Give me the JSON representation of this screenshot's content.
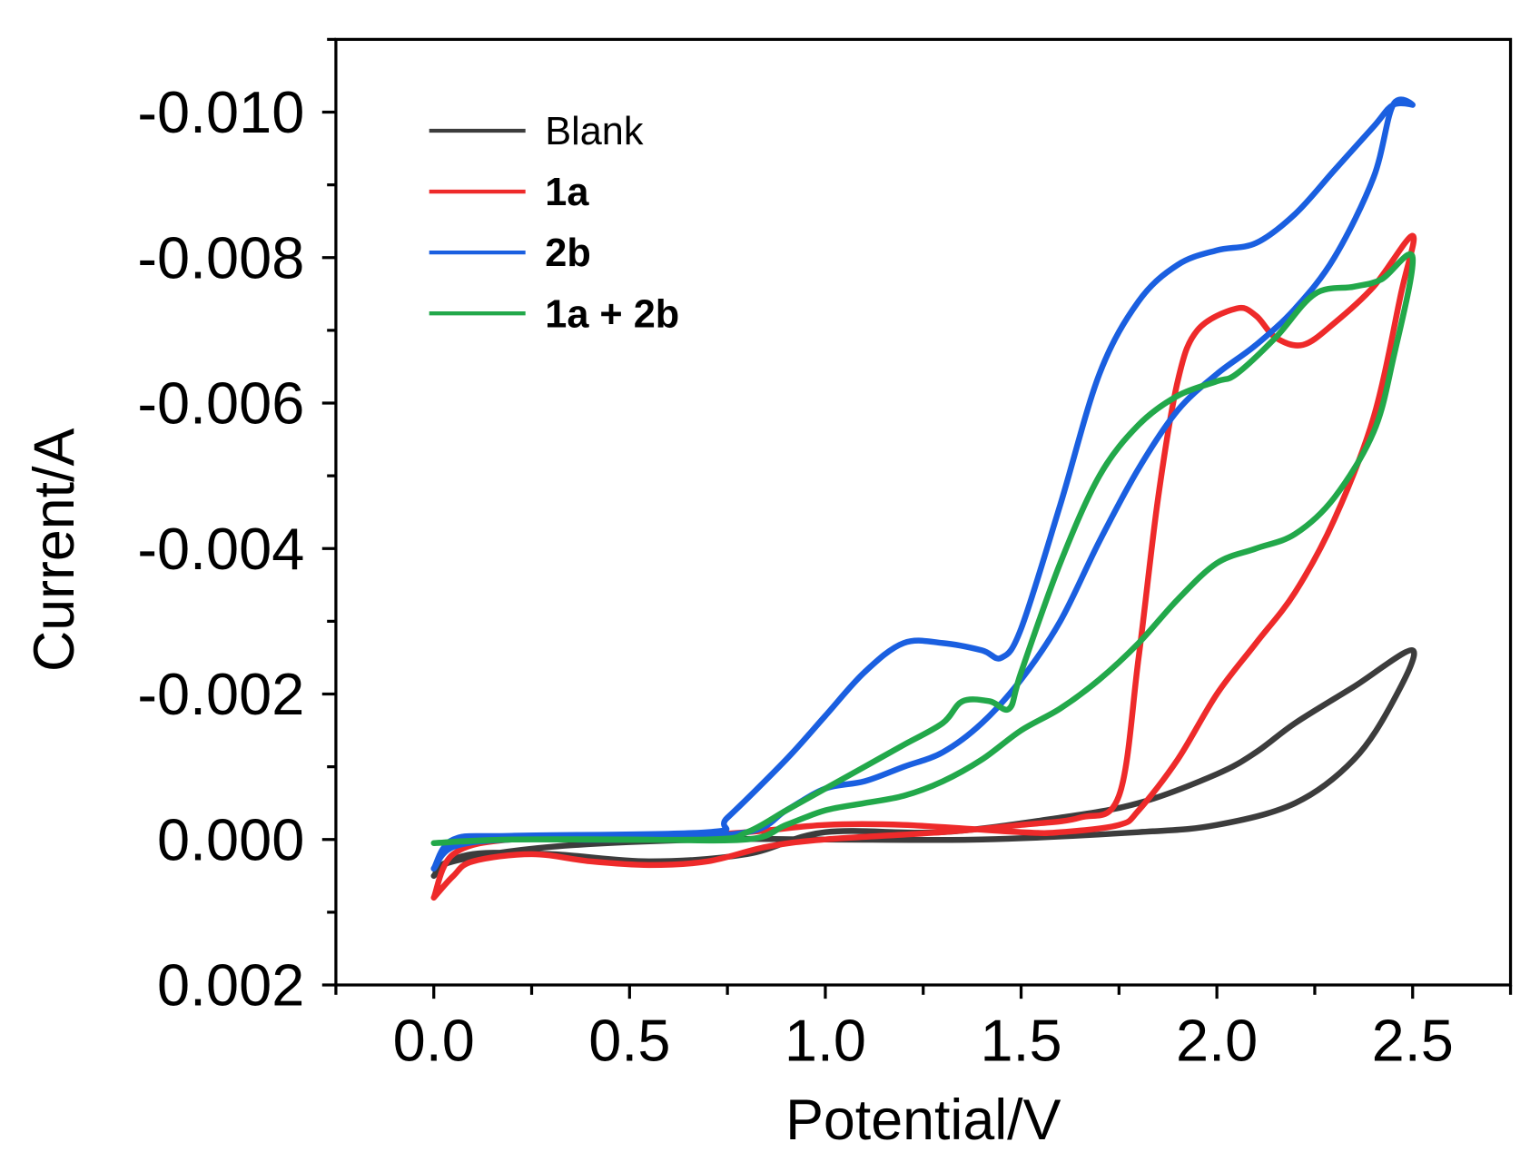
{
  "chart_data": {
    "type": "line",
    "title": "",
    "xlabel": "Potential/V",
    "ylabel": "Current/A",
    "xlim": [
      -0.25,
      2.75
    ],
    "ylim": [
      0.002,
      -0.011
    ],
    "y_axis_inverted": true,
    "xticks": [
      0.0,
      0.5,
      1.0,
      1.5,
      2.0,
      2.5
    ],
    "xtick_labels": [
      "0.0",
      "0.5",
      "1.0",
      "1.5",
      "2.0",
      "2.5"
    ],
    "yticks": [
      -0.01,
      -0.008,
      -0.006,
      -0.004,
      -0.002,
      0.0,
      0.002
    ],
    "ytick_labels": [
      "-0.010",
      "-0.008",
      "-0.006",
      "-0.004",
      "-0.002",
      "0.000",
      "0.002"
    ],
    "grid": false,
    "legend_position": "top-left",
    "series": [
      {
        "name": "Blank",
        "color": "#3c3c3c",
        "bold": false,
        "x": [
          0,
          0.1,
          0.3,
          0.55,
          0.8,
          1.0,
          1.3,
          1.6,
          1.8,
          2.0,
          2.1,
          2.2,
          2.35,
          2.5,
          2.45,
          2.35,
          2.2,
          2.0,
          1.8,
          1.4,
          1.0,
          0.7,
          0.3,
          0.05,
          0
        ],
        "y": [
          0.0004,
          0.0002,
          0.0002,
          0.0003,
          0.0002,
          -0.0001,
          -0.0001,
          -0.0003,
          -0.0005,
          -0.0009,
          -0.0012,
          -0.0016,
          -0.0021,
          -0.0026,
          -0.0019,
          -0.0011,
          -0.0005,
          -0.0002,
          -0.0001,
          0.0,
          0.0,
          0.0,
          0.0001,
          0.0003,
          0.0005
        ]
      },
      {
        "name": "1a",
        "color": "#ee2a2a",
        "bold": true,
        "x": [
          0,
          0.05,
          0.1,
          0.25,
          0.4,
          0.55,
          0.7,
          0.85,
          1.0,
          1.3,
          1.5,
          1.65,
          1.75,
          1.8,
          1.85,
          1.9,
          1.95,
          2.05,
          2.1,
          2.15,
          2.22,
          2.3,
          2.4,
          2.5,
          2.47,
          2.4,
          2.3,
          2.2,
          2.1,
          2.0,
          1.9,
          1.8,
          1.75,
          1.6,
          1.5,
          1.2,
          1.0,
          0.8,
          0.5,
          0.2,
          0.05,
          0
        ],
        "y": [
          0.0008,
          0.0005,
          0.0003,
          0.0002,
          0.0003,
          0.00035,
          0.0003,
          0.0001,
          0.0,
          -0.0001,
          -0.0002,
          -0.0003,
          -0.0006,
          -0.0025,
          -0.0047,
          -0.0063,
          -0.007,
          -0.0073,
          -0.0072,
          -0.0069,
          -0.0068,
          -0.0071,
          -0.0076,
          -0.0083,
          -0.0075,
          -0.0058,
          -0.0044,
          -0.0034,
          -0.0027,
          -0.002,
          -0.0011,
          -0.0004,
          -0.0002,
          -0.0001,
          -0.0001,
          -0.0002,
          -0.0002,
          -0.0001,
          0.0,
          0.0,
          0.0002,
          0.0008
        ]
      },
      {
        "name": "2b",
        "color": "#1a5fe0",
        "bold": true,
        "x": [
          0,
          0.05,
          0.2,
          0.7,
          0.75,
          0.9,
          1.0,
          1.1,
          1.2,
          1.3,
          1.4,
          1.45,
          1.5,
          1.6,
          1.7,
          1.8,
          1.9,
          2.0,
          2.1,
          2.2,
          2.3,
          2.4,
          2.45,
          2.5,
          2.45,
          2.4,
          2.3,
          2.2,
          2.1,
          2.0,
          1.9,
          1.8,
          1.7,
          1.6,
          1.5,
          1.4,
          1.3,
          1.2,
          1.1,
          1.0,
          0.9,
          0.8,
          0.5,
          0.2,
          0.05,
          0
        ],
        "y": [
          0.0004,
          0.0,
          -5e-05,
          -0.0001,
          -0.0003,
          -0.0011,
          -0.0017,
          -0.0023,
          -0.0027,
          -0.0027,
          -0.0026,
          -0.0025,
          -0.0029,
          -0.0046,
          -0.0064,
          -0.0074,
          -0.0079,
          -0.0081,
          -0.0082,
          -0.0086,
          -0.0092,
          -0.0098,
          -0.0101,
          -0.0101,
          -0.0101,
          -0.0091,
          -0.008,
          -0.0073,
          -0.0068,
          -0.0064,
          -0.0059,
          -0.0051,
          -0.0041,
          -0.003,
          -0.0022,
          -0.0016,
          -0.0012,
          -0.001,
          -0.0008,
          -0.0007,
          -0.0004,
          -0.0001,
          0.0,
          0.0,
          0.0001,
          0.0004
        ]
      },
      {
        "name": "1a + 2b",
        "color": "#22a84a",
        "bold": true,
        "x": [
          0,
          0.2,
          0.7,
          0.8,
          0.9,
          1.0,
          1.1,
          1.2,
          1.3,
          1.35,
          1.42,
          1.47,
          1.5,
          1.6,
          1.7,
          1.8,
          1.9,
          2.0,
          2.05,
          2.15,
          2.25,
          2.35,
          2.42,
          2.5,
          2.45,
          2.4,
          2.3,
          2.2,
          2.1,
          2.0,
          1.9,
          1.8,
          1.7,
          1.6,
          1.5,
          1.4,
          1.3,
          1.2,
          1.1,
          1.0,
          0.9,
          0.8,
          0.5,
          0.2,
          0
        ],
        "y": [
          5e-05,
          0.0,
          0.0,
          -0.0001,
          -0.0004,
          -0.0007,
          -0.001,
          -0.0013,
          -0.0016,
          -0.0019,
          -0.0019,
          -0.0018,
          -0.0023,
          -0.0038,
          -0.005,
          -0.0057,
          -0.0061,
          -0.0063,
          -0.0064,
          -0.0069,
          -0.0075,
          -0.0076,
          -0.0077,
          -0.008,
          -0.0066,
          -0.0056,
          -0.0047,
          -0.0042,
          -0.004,
          -0.0038,
          -0.0033,
          -0.0027,
          -0.0022,
          -0.0018,
          -0.0015,
          -0.0011,
          -0.0008,
          -0.0006,
          -0.0005,
          -0.0004,
          -0.0002,
          0.0,
          0.0,
          0.0,
          5e-05
        ]
      }
    ]
  }
}
